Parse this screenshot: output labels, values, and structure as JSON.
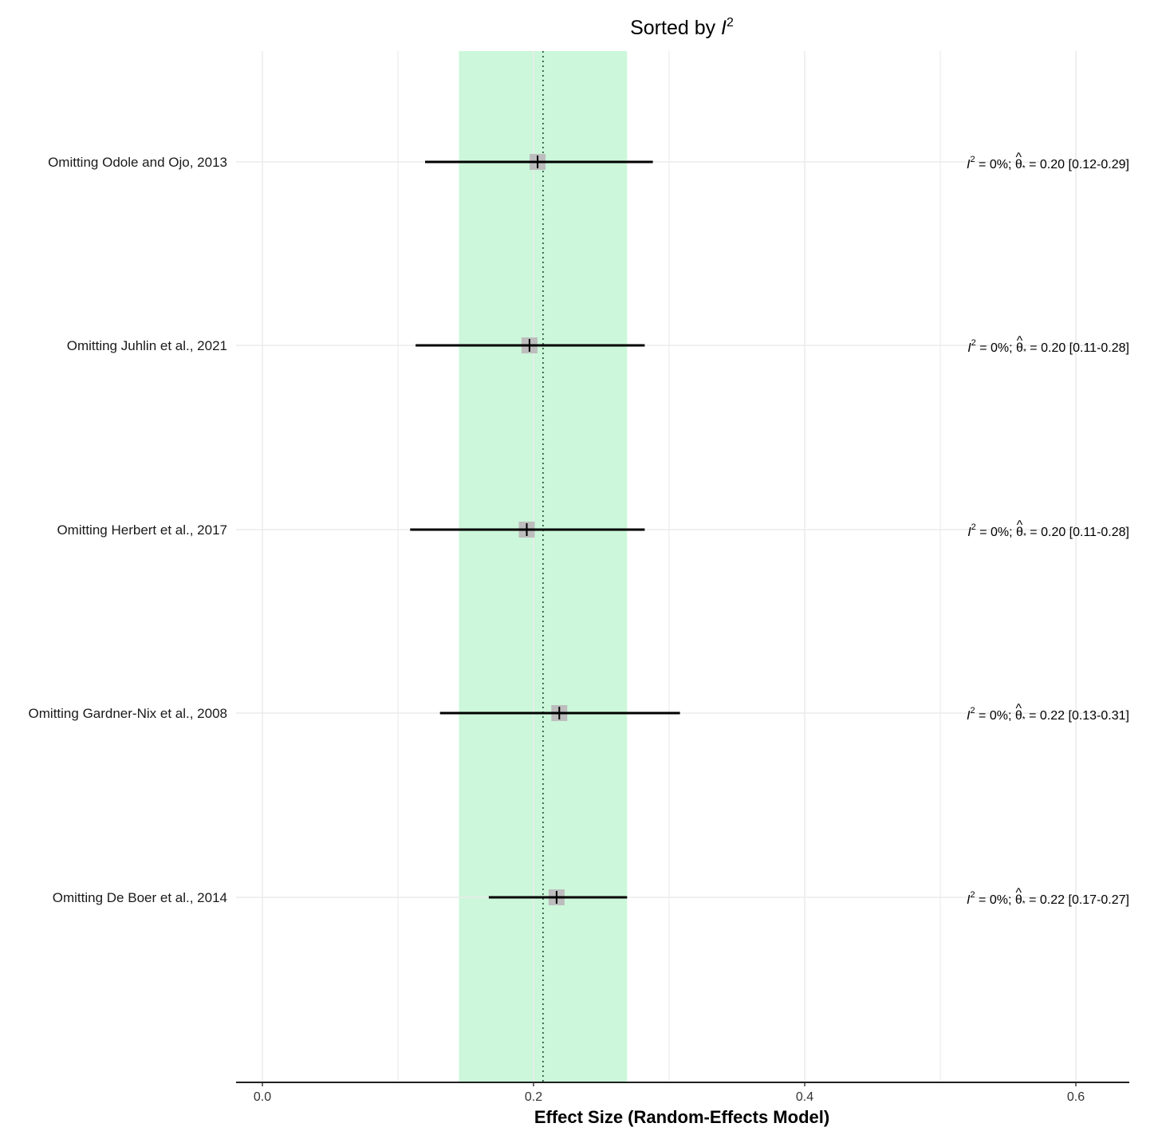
{
  "chart_data": {
    "type": "forest",
    "title": "Sorted by I²",
    "title_prefix": "Sorted by ",
    "title_symbol": "I",
    "title_superscript": "2",
    "xlabel": "Effect Size (Random-Effects Model)",
    "ylabel": "",
    "xlim": [
      -0.02,
      0.64
    ],
    "x_ticks": [
      0.0,
      0.2,
      0.4,
      0.6
    ],
    "x_tick_labels": [
      "0.0",
      "0.2",
      "0.4",
      "0.6"
    ],
    "pooled_estimate": 0.207,
    "pooled_ci": [
      0.145,
      0.269
    ],
    "colors": {
      "ci_band": "#ccf7da",
      "marker_box": "#bdbdbd",
      "line": "#000000",
      "grid": "#ebebeb"
    },
    "studies": [
      {
        "label": "Omitting Odole and Ojo, 2013",
        "estimate": 0.203,
        "ci_lower": 0.12,
        "ci_upper": 0.288,
        "annotation": {
          "i2": "0%",
          "theta": "0.20",
          "ci": "[0.12-0.29]"
        }
      },
      {
        "label": "Omitting Juhlin et al., 2021",
        "estimate": 0.197,
        "ci_lower": 0.113,
        "ci_upper": 0.282,
        "annotation": {
          "i2": "0%",
          "theta": "0.20",
          "ci": "[0.11-0.28]"
        }
      },
      {
        "label": "Omitting Herbert et al., 2017",
        "estimate": 0.195,
        "ci_lower": 0.109,
        "ci_upper": 0.282,
        "annotation": {
          "i2": "0%",
          "theta": "0.20",
          "ci": "[0.11-0.28]"
        }
      },
      {
        "label": "Omitting Gardner-Nix et al., 2008",
        "estimate": 0.219,
        "ci_lower": 0.131,
        "ci_upper": 0.308,
        "annotation": {
          "i2": "0%",
          "theta": "0.22",
          "ci": "[0.13-0.31]"
        }
      },
      {
        "label": "Omitting De Boer et al., 2014",
        "estimate": 0.217,
        "ci_lower": 0.167,
        "ci_upper": 0.269,
        "annotation": {
          "i2": "0%",
          "theta": "0.22",
          "ci": "[0.17-0.27]"
        }
      }
    ],
    "annotation_text": {
      "i_symbol": "I",
      "sup": "2",
      "eq_part": " = ",
      "sep": "; ",
      "theta_symbol": "θ",
      "hat": "^",
      "star": "*"
    }
  }
}
